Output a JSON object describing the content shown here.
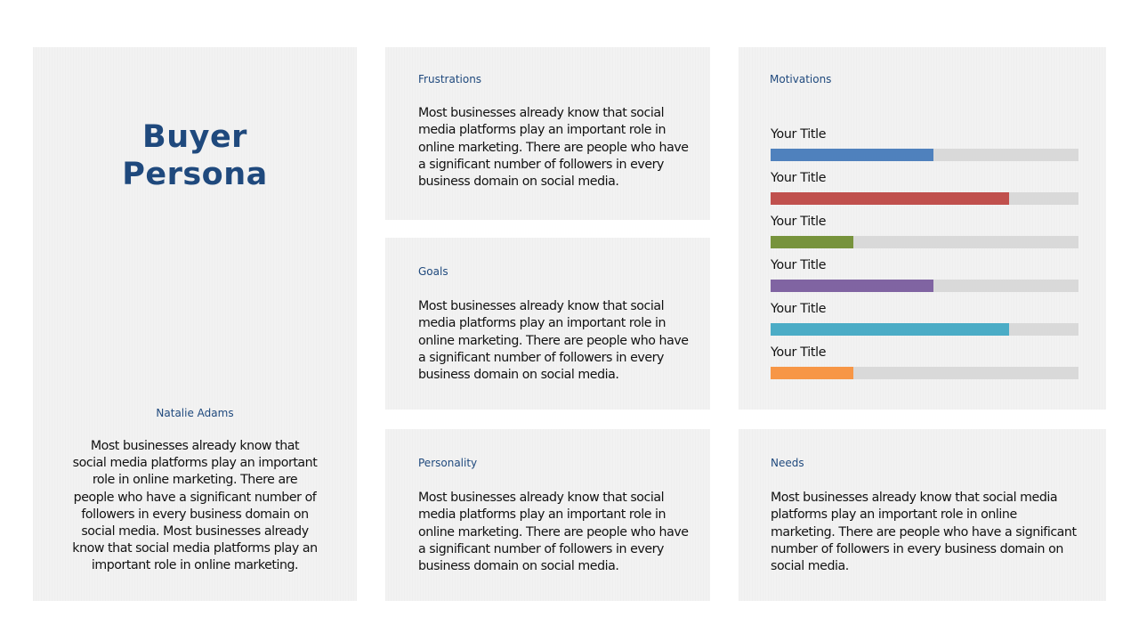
{
  "persona": {
    "title_line1": "Buyer",
    "title_line2": "Persona",
    "name": "Natalie Adams",
    "description": "Most businesses already know that social media platforms play an important role in online marketing. There are people who have a significant number of followers in every business domain on social media. Most businesses already know that social media platforms play an important role in online marketing."
  },
  "frustrations": {
    "label": "Frustrations",
    "text": "Most businesses already know that social media platforms play an important role in online marketing. There are people who have a significant number of followers in every business domain on social media."
  },
  "goals": {
    "label": "Goals",
    "text": "Most businesses already know that social media platforms play an important role in online marketing. There are people who have a significant number of followers in every business domain on social media."
  },
  "personality": {
    "label": "Personality",
    "text": "Most businesses already know that social media platforms play an important role in online marketing. There are people who have a significant number of followers in every business domain on social media."
  },
  "motivations": {
    "label": "Motivations",
    "bars": [
      {
        "label": "Your Title",
        "value": 0.53,
        "color": "#4f81bd"
      },
      {
        "label": "Your Title",
        "value": 0.775,
        "color": "#c0504d"
      },
      {
        "label": "Your Title",
        "value": 0.27,
        "color": "#77933c"
      },
      {
        "label": "Your Title",
        "value": 0.53,
        "color": "#8064a2"
      },
      {
        "label": "Your Title",
        "value": 0.775,
        "color": "#4bacc6"
      },
      {
        "label": "Your Title",
        "value": 0.27,
        "color": "#f79646"
      }
    ]
  },
  "needs": {
    "label": "Needs",
    "text": "Most businesses already know that social media platforms play an important role in online marketing. There are people who have a significant number of followers in every business domain on social media."
  },
  "colors": {
    "accent": "#1f497d",
    "panel_bg": "#f2f2f2",
    "track": "#d9d9d9"
  }
}
